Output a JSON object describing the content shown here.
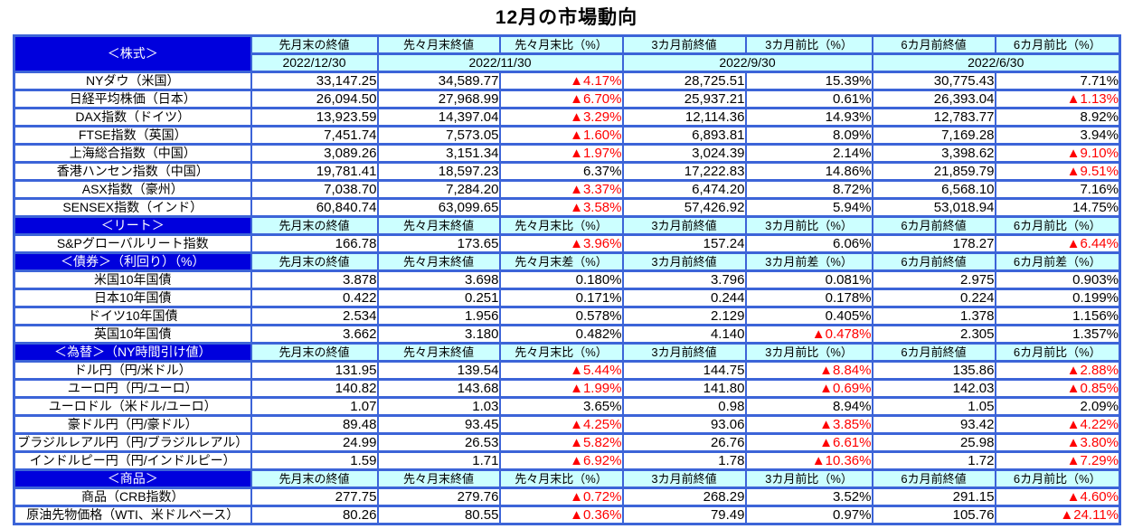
{
  "title": "12月の市場動向",
  "colors": {
    "section_header_bg": "#0000dd",
    "section_header_text": "#ffffff",
    "column_header_bg": "#ccffff",
    "grid_border": "#3c64d8",
    "negative_value": "#ff0000",
    "positive_value": "#000000"
  },
  "negative_marker": "▲",
  "table": {
    "header_sets": {
      "change": [
        "先月末の終値",
        "先々月末終値",
        "先々月末比（%）",
        "3カ月前終値",
        "3カ月前比（%）",
        "6カ月前終値",
        "6カ月前比（%）"
      ],
      "diff": [
        "先月末の終値",
        "先々月末終値",
        "先々月末差（%）",
        "3カ月前終値",
        "3カ月前差（%）",
        "6カ月前終値",
        "6カ月前差（%）"
      ]
    },
    "dates": [
      {
        "label": "2022/12/30",
        "span": 1
      },
      {
        "label": "2022/11/30",
        "span": 2
      },
      {
        "label": "2022/9/30",
        "span": 2
      },
      {
        "label": "2022/6/30",
        "span": 2
      }
    ],
    "sections": [
      {
        "label": "＜株式＞",
        "headers": "change",
        "show_dates": true,
        "rows": [
          {
            "label": "NYダウ（米国）",
            "values": [
              "33,147.25",
              "34,589.77",
              "▲4.17%",
              "28,725.51",
              "15.39%",
              "30,775.43",
              "7.71%"
            ]
          },
          {
            "label": "日経平均株価（日本）",
            "values": [
              "26,094.50",
              "27,968.99",
              "▲6.70%",
              "25,937.21",
              "0.61%",
              "26,393.04",
              "▲1.13%"
            ]
          },
          {
            "label": "DAX指数（ドイツ）",
            "values": [
              "13,923.59",
              "14,397.04",
              "▲3.29%",
              "12,114.36",
              "14.93%",
              "12,783.77",
              "8.92%"
            ]
          },
          {
            "label": "FTSE指数（英国）",
            "values": [
              "7,451.74",
              "7,573.05",
              "▲1.60%",
              "6,893.81",
              "8.09%",
              "7,169.28",
              "3.94%"
            ]
          },
          {
            "label": "上海総合指数（中国）",
            "values": [
              "3,089.26",
              "3,151.34",
              "▲1.97%",
              "3,024.39",
              "2.14%",
              "3,398.62",
              "▲9.10%"
            ]
          },
          {
            "label": "香港ハンセン指数（中国）",
            "values": [
              "19,781.41",
              "18,597.23",
              "6.37%",
              "17,222.83",
              "14.86%",
              "21,859.79",
              "▲9.51%"
            ]
          },
          {
            "label": "ASX指数（豪州）",
            "values": [
              "7,038.70",
              "7,284.20",
              "▲3.37%",
              "6,474.20",
              "8.72%",
              "6,568.10",
              "7.16%"
            ]
          },
          {
            "label": "SENSEX指数（インド）",
            "values": [
              "60,840.74",
              "63,099.65",
              "▲3.58%",
              "57,426.92",
              "5.94%",
              "53,018.94",
              "14.75%"
            ]
          }
        ]
      },
      {
        "label": "＜リート＞",
        "headers": "change",
        "show_dates": false,
        "rows": [
          {
            "label": "S&Pグローバルリート指数",
            "values": [
              "166.78",
              "173.65",
              "▲3.96%",
              "157.24",
              "6.06%",
              "178.27",
              "▲6.44%"
            ]
          }
        ]
      },
      {
        "label": "＜債券＞（利回り）（%）",
        "headers": "diff",
        "show_dates": false,
        "rows": [
          {
            "label": "米国10年国債",
            "values": [
              "3.878",
              "3.698",
              "0.180%",
              "3.796",
              "0.081%",
              "2.975",
              "0.903%"
            ]
          },
          {
            "label": "日本10年国債",
            "values": [
              "0.422",
              "0.251",
              "0.171%",
              "0.244",
              "0.178%",
              "0.224",
              "0.199%"
            ]
          },
          {
            "label": "ドイツ10年国債",
            "values": [
              "2.534",
              "1.956",
              "0.578%",
              "2.129",
              "0.405%",
              "1.378",
              "1.156%"
            ]
          },
          {
            "label": "英国10年国債",
            "values": [
              "3.662",
              "3.180",
              "0.482%",
              "4.140",
              "▲0.478%",
              "2.305",
              "1.357%"
            ]
          }
        ]
      },
      {
        "label": "＜為替＞（NY時間引け値）",
        "headers": "change",
        "show_dates": false,
        "rows": [
          {
            "label": "ドル円（円/米ドル）",
            "values": [
              "131.95",
              "139.54",
              "▲5.44%",
              "144.75",
              "▲8.84%",
              "135.86",
              "▲2.88%"
            ]
          },
          {
            "label": "ユーロ円（円/ユーロ）",
            "values": [
              "140.82",
              "143.68",
              "▲1.99%",
              "141.80",
              "▲0.69%",
              "142.03",
              "▲0.85%"
            ]
          },
          {
            "label": "ユーロドル（米ドル/ユーロ）",
            "values": [
              "1.07",
              "1.03",
              "3.65%",
              "0.98",
              "8.94%",
              "1.05",
              "2.09%"
            ]
          },
          {
            "label": "豪ドル円（円/豪ドル）",
            "values": [
              "89.48",
              "93.45",
              "▲4.25%",
              "93.06",
              "▲3.85%",
              "93.42",
              "▲4.22%"
            ]
          },
          {
            "label": "ブラジルレアル円（円/ブラジルレアル）",
            "values": [
              "24.99",
              "26.53",
              "▲5.82%",
              "26.76",
              "▲6.61%",
              "25.98",
              "▲3.80%"
            ]
          },
          {
            "label": "インドルピー円（円/インドルピー）",
            "values": [
              "1.59",
              "1.71",
              "▲6.92%",
              "1.78",
              "▲10.36%",
              "1.72",
              "▲7.29%"
            ]
          }
        ]
      },
      {
        "label": "＜商品＞",
        "headers": "change",
        "show_dates": false,
        "rows": [
          {
            "label": "商品（CRB指数）",
            "values": [
              "277.75",
              "279.76",
              "▲0.72%",
              "268.29",
              "3.52%",
              "291.15",
              "▲4.60%"
            ]
          },
          {
            "label": "原油先物価格（WTI、米ドルベース）",
            "values": [
              "80.26",
              "80.55",
              "▲0.36%",
              "79.49",
              "0.97%",
              "105.76",
              "▲24.11%"
            ]
          }
        ]
      }
    ]
  }
}
